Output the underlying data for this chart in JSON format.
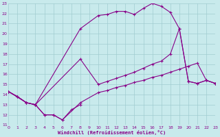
{
  "xlabel": "Windchill (Refroidissement éolien,°C)",
  "bg_color": "#c8eaec",
  "grid_color": "#a0ccd0",
  "line_color": "#880088",
  "xmin": 0,
  "xmax": 23,
  "ymin": 11,
  "ymax": 23,
  "series": [
    {
      "x": [
        0,
        2,
        3,
        8,
        10,
        11,
        12,
        13,
        14,
        15,
        16,
        17,
        18,
        19,
        20,
        21,
        22,
        23
      ],
      "y": [
        14.3,
        13.2,
        13.0,
        20.5,
        21.8,
        21.9,
        22.2,
        22.2,
        21.9,
        22.5,
        23.0,
        22.7,
        22.1,
        20.5,
        15.3,
        15.1,
        15.4,
        15.1
      ]
    },
    {
      "x": [
        0,
        1,
        2,
        3,
        8,
        10,
        11,
        12,
        13,
        14,
        15,
        16,
        17,
        18,
        19,
        20,
        21,
        22,
        23
      ],
      "y": [
        14.3,
        13.8,
        13.2,
        13.0,
        17.5,
        15.0,
        15.3,
        15.6,
        15.9,
        16.2,
        16.6,
        17.0,
        17.3,
        18.0,
        20.5,
        15.3,
        15.1,
        15.4,
        15.1
      ]
    },
    {
      "x": [
        0,
        1,
        2,
        3,
        4,
        5,
        6,
        8,
        10,
        11,
        12,
        13,
        14,
        15,
        16,
        17,
        18,
        19,
        20,
        21,
        22,
        23
      ],
      "y": [
        14.3,
        13.8,
        13.2,
        13.0,
        12.0,
        12.0,
        11.5,
        13.2,
        14.2,
        14.4,
        14.7,
        14.9,
        15.2,
        15.4,
        15.7,
        15.9,
        16.2,
        16.5,
        16.8,
        17.1,
        15.4,
        15.1
      ]
    },
    {
      "x": [
        0,
        1,
        2,
        3,
        4,
        5,
        6,
        7,
        8
      ],
      "y": [
        14.3,
        13.8,
        13.2,
        13.0,
        12.0,
        12.0,
        11.5,
        12.5,
        13.0
      ]
    }
  ]
}
